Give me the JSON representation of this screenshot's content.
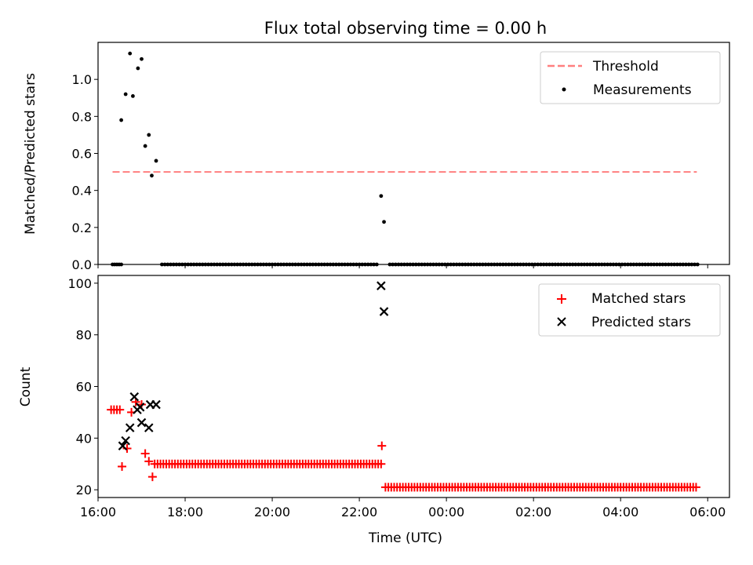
{
  "chart_data": [
    {
      "type": "scatter",
      "title": "Flux total observing time = 0.00 h",
      "xlabel": "",
      "ylabel": "Matched/Predicted stars",
      "xlim": [
        "16:00",
        "06:30"
      ],
      "ylim": [
        0,
        1.2
      ],
      "x_ticks": [
        "16:00",
        "18:00",
        "20:00",
        "22:00",
        "00:00",
        "02:00",
        "04:00",
        "06:00"
      ],
      "show_x_tick_labels": false,
      "y_ticks": [
        "0.0",
        "0.2",
        "0.4",
        "0.6",
        "0.8",
        "1.0"
      ],
      "legend": {
        "placement": "upper right",
        "entries": [
          "Threshold",
          "Measurements"
        ]
      },
      "threshold": {
        "name": "Threshold",
        "value": 0.5,
        "x_range": [
          "16:20",
          "05:45"
        ],
        "color": "#ff7f7f",
        "style": "dashed"
      },
      "measurements": {
        "name": "Measurements",
        "color": "#000000",
        "points": [
          [
            "16:32",
            0.78
          ],
          [
            "16:38",
            0.92
          ],
          [
            "16:44",
            1.14
          ],
          [
            "16:48",
            0.91
          ],
          [
            "16:55",
            1.06
          ],
          [
            "17:00",
            1.11
          ],
          [
            "17:05",
            0.64
          ],
          [
            "17:10",
            0.7
          ],
          [
            "17:14",
            0.48
          ],
          [
            "17:20",
            0.56
          ],
          [
            "22:30",
            0.37
          ],
          [
            "22:34",
            0.23
          ]
        ],
        "zero_runs": [
          {
            "start": "16:20",
            "end": "16:32",
            "step_minutes": 3
          },
          {
            "start": "17:28",
            "end": "22:24",
            "step_minutes": 4
          },
          {
            "start": "22:42",
            "end": "05:46",
            "step_minutes": 4
          }
        ]
      }
    },
    {
      "type": "scatter",
      "title": "",
      "xlabel": "Time (UTC)",
      "ylabel": "Count",
      "xlim": [
        "16:00",
        "06:30"
      ],
      "ylim": [
        17,
        103
      ],
      "x_ticks": [
        "16:00",
        "18:00",
        "20:00",
        "22:00",
        "00:00",
        "02:00",
        "04:00",
        "06:00"
      ],
      "y_ticks": [
        "20",
        "40",
        "60",
        "80",
        "100"
      ],
      "legend": {
        "placement": "upper right",
        "entries": [
          "Matched stars",
          "Predicted stars"
        ]
      },
      "series": [
        {
          "name": "Matched stars",
          "marker": "+",
          "color": "#ff0000",
          "points": [
            [
              "16:18",
              51
            ],
            [
              "16:22",
              51
            ],
            [
              "16:26",
              51
            ],
            [
              "16:30",
              51
            ],
            [
              "16:33",
              29
            ],
            [
              "16:40",
              36
            ],
            [
              "16:46",
              50
            ],
            [
              "16:52",
              54
            ],
            [
              "17:00",
              53
            ],
            [
              "17:05",
              34
            ],
            [
              "17:10",
              31
            ],
            [
              "17:15",
              25
            ],
            [
              "22:31",
              37
            ]
          ],
          "runs": [
            {
              "start": "17:18",
              "end": "22:30",
              "step_minutes": 4,
              "value": 30
            },
            {
              "start": "22:36",
              "end": "05:46",
              "step_minutes": 4,
              "value": 21
            }
          ]
        },
        {
          "name": "Predicted stars",
          "marker": "x",
          "color": "#000000",
          "points": [
            [
              "16:34",
              37
            ],
            [
              "16:38",
              39
            ],
            [
              "16:44",
              44
            ],
            [
              "16:50",
              56
            ],
            [
              "16:54",
              51
            ],
            [
              "16:58",
              52
            ],
            [
              "17:00",
              46
            ],
            [
              "17:10",
              44
            ],
            [
              "17:12",
              53
            ],
            [
              "17:20",
              53
            ],
            [
              "22:30",
              99
            ],
            [
              "22:34",
              89
            ]
          ]
        }
      ]
    }
  ]
}
